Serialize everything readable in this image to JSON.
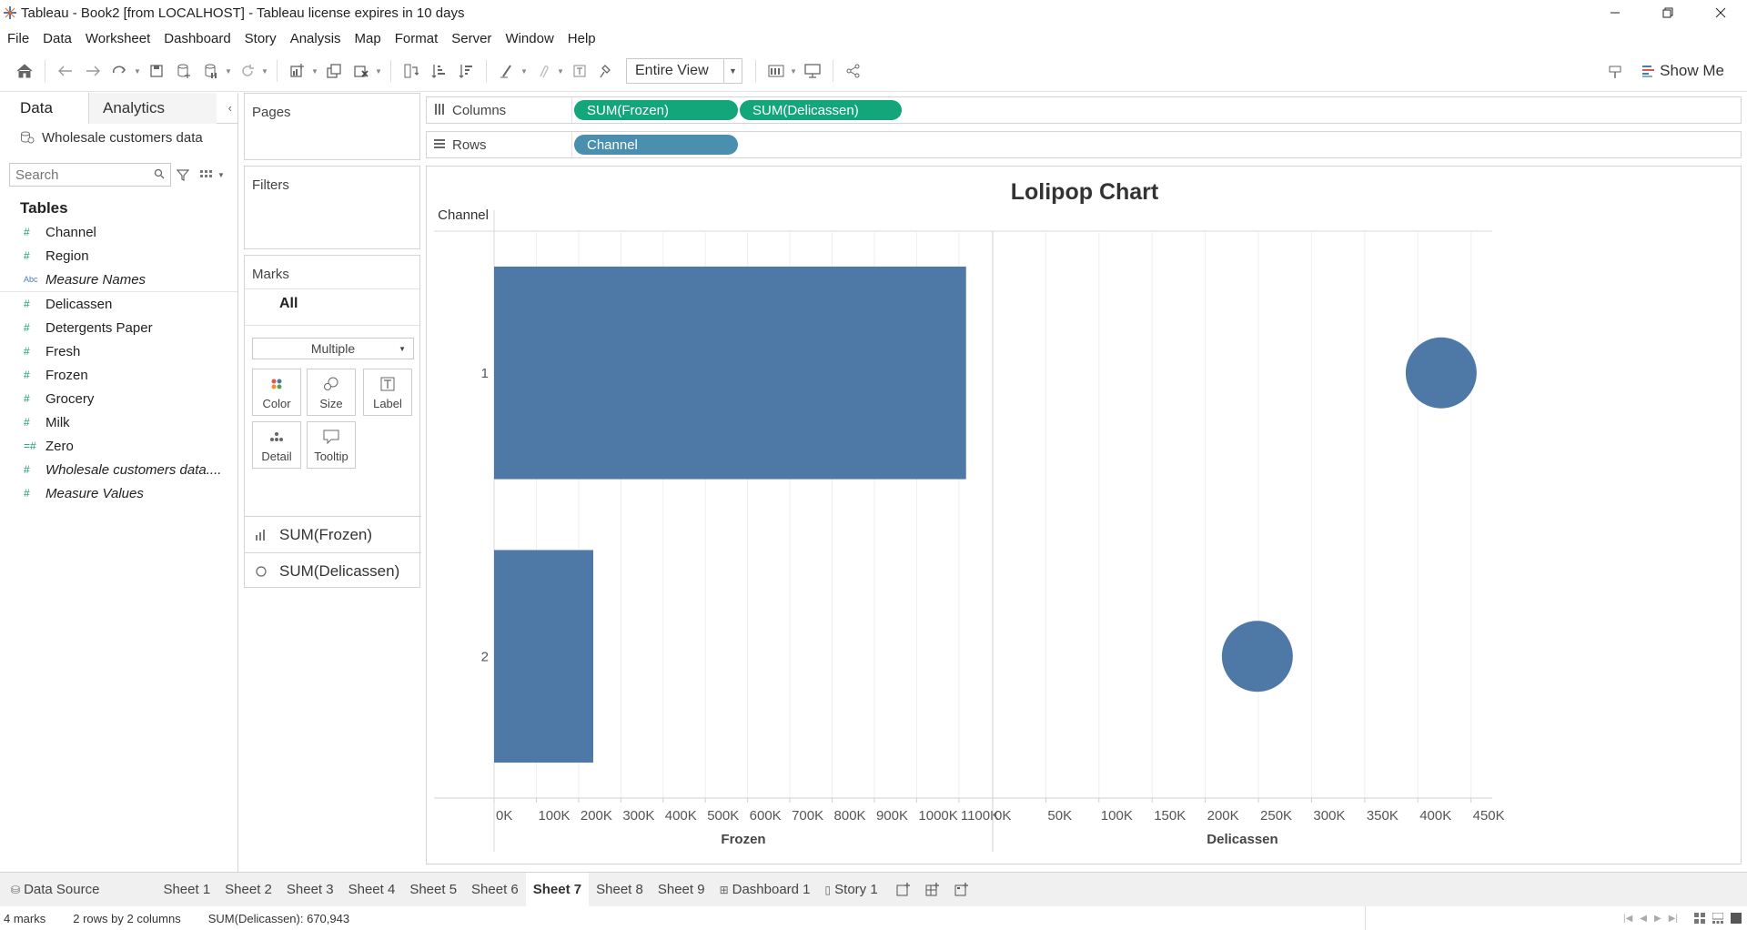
{
  "window": {
    "title": "Tableau - Book2 [from LOCALHOST] - Tableau license expires in 10 days",
    "controls": [
      "minimize",
      "restore",
      "close"
    ]
  },
  "menu": [
    "File",
    "Data",
    "Worksheet",
    "Dashboard",
    "Story",
    "Analysis",
    "Map",
    "Format",
    "Server",
    "Window",
    "Help"
  ],
  "toolbar": {
    "fit_select": "Entire View",
    "show_me": "Show Me"
  },
  "data_pane": {
    "tabs": {
      "data": "Data",
      "analytics": "Analytics"
    },
    "datasource": "Wholesale customers data",
    "search_placeholder": "Search",
    "tables_heading": "Tables",
    "fields": [
      {
        "label": "Channel",
        "type": "measure"
      },
      {
        "label": "Region",
        "type": "measure"
      },
      {
        "label": "Measure Names",
        "type": "dimension"
      },
      {
        "label": "Delicassen",
        "type": "measure"
      },
      {
        "label": "Detergents Paper",
        "type": "measure"
      },
      {
        "label": "Fresh",
        "type": "measure"
      },
      {
        "label": "Frozen",
        "type": "measure"
      },
      {
        "label": "Grocery",
        "type": "measure"
      },
      {
        "label": "Milk",
        "type": "measure"
      },
      {
        "label": "Zero",
        "type": "calc"
      },
      {
        "label": "Wholesale customers data....",
        "type": "measure"
      },
      {
        "label": "Measure Values",
        "type": "measure"
      }
    ]
  },
  "cards": {
    "pages": "Pages",
    "filters": "Filters",
    "marks": "Marks",
    "marks_all": "All",
    "marks_type": "Multiple",
    "mark_buttons": [
      "Color",
      "Size",
      "Label",
      "Detail",
      "Tooltip"
    ],
    "mark_layers": [
      "SUM(Frozen)",
      "SUM(Delicassen)"
    ]
  },
  "shelves": {
    "columns_label": "Columns",
    "rows_label": "Rows",
    "columns_pills": [
      "SUM(Frozen)",
      "SUM(Delicassen)"
    ],
    "rows_pills": [
      "Channel"
    ]
  },
  "colors": {
    "mark": "#4e79a7",
    "pill_measure": "#12a67a",
    "pill_dimension": "#4a8fae"
  },
  "chart_data": {
    "type": "bar",
    "title": "Lolipop Chart",
    "row_header": "Channel",
    "categories": [
      "1",
      "2"
    ],
    "panes": [
      {
        "name": "Frozen",
        "xlabel": "Frozen",
        "mark": "bar",
        "values": [
          1116979,
          234671
        ],
        "xlim": [
          0,
          1180000
        ],
        "ticks": [
          0,
          100000,
          200000,
          300000,
          400000,
          500000,
          600000,
          700000,
          800000,
          900000,
          1000000,
          1100000
        ],
        "tick_labels": [
          "0K",
          "100K",
          "200K",
          "300K",
          "400K",
          "500K",
          "600K",
          "700K",
          "800K",
          "900K",
          "1000K",
          "1100K"
        ]
      },
      {
        "name": "Delicassen",
        "xlabel": "Delicassen",
        "mark": "circle",
        "values": [
          421955,
          248988
        ],
        "xlim": [
          0,
          470000
        ],
        "ticks": [
          0,
          50000,
          100000,
          150000,
          200000,
          250000,
          300000,
          350000,
          400000,
          450000
        ],
        "tick_labels": [
          "0K",
          "50K",
          "100K",
          "150K",
          "200K",
          "250K",
          "300K",
          "350K",
          "400K",
          "450K"
        ]
      }
    ],
    "grid": true
  },
  "sheet_tabs": [
    {
      "label": "Data Source",
      "kind": "datasource"
    },
    {
      "label": "Sheet 1"
    },
    {
      "label": "Sheet 2"
    },
    {
      "label": "Sheet 3"
    },
    {
      "label": "Sheet 4"
    },
    {
      "label": "Sheet 5"
    },
    {
      "label": "Sheet 6"
    },
    {
      "label": "Sheet 7",
      "active": true
    },
    {
      "label": "Sheet 8"
    },
    {
      "label": "Sheet 9"
    },
    {
      "label": "Dashboard 1",
      "kind": "dashboard"
    },
    {
      "label": "Story 1",
      "kind": "story"
    }
  ],
  "status": {
    "marks": "4 marks",
    "rows_cols": "2 rows by 2 columns",
    "sum": "SUM(Delicassen): 670,943"
  }
}
